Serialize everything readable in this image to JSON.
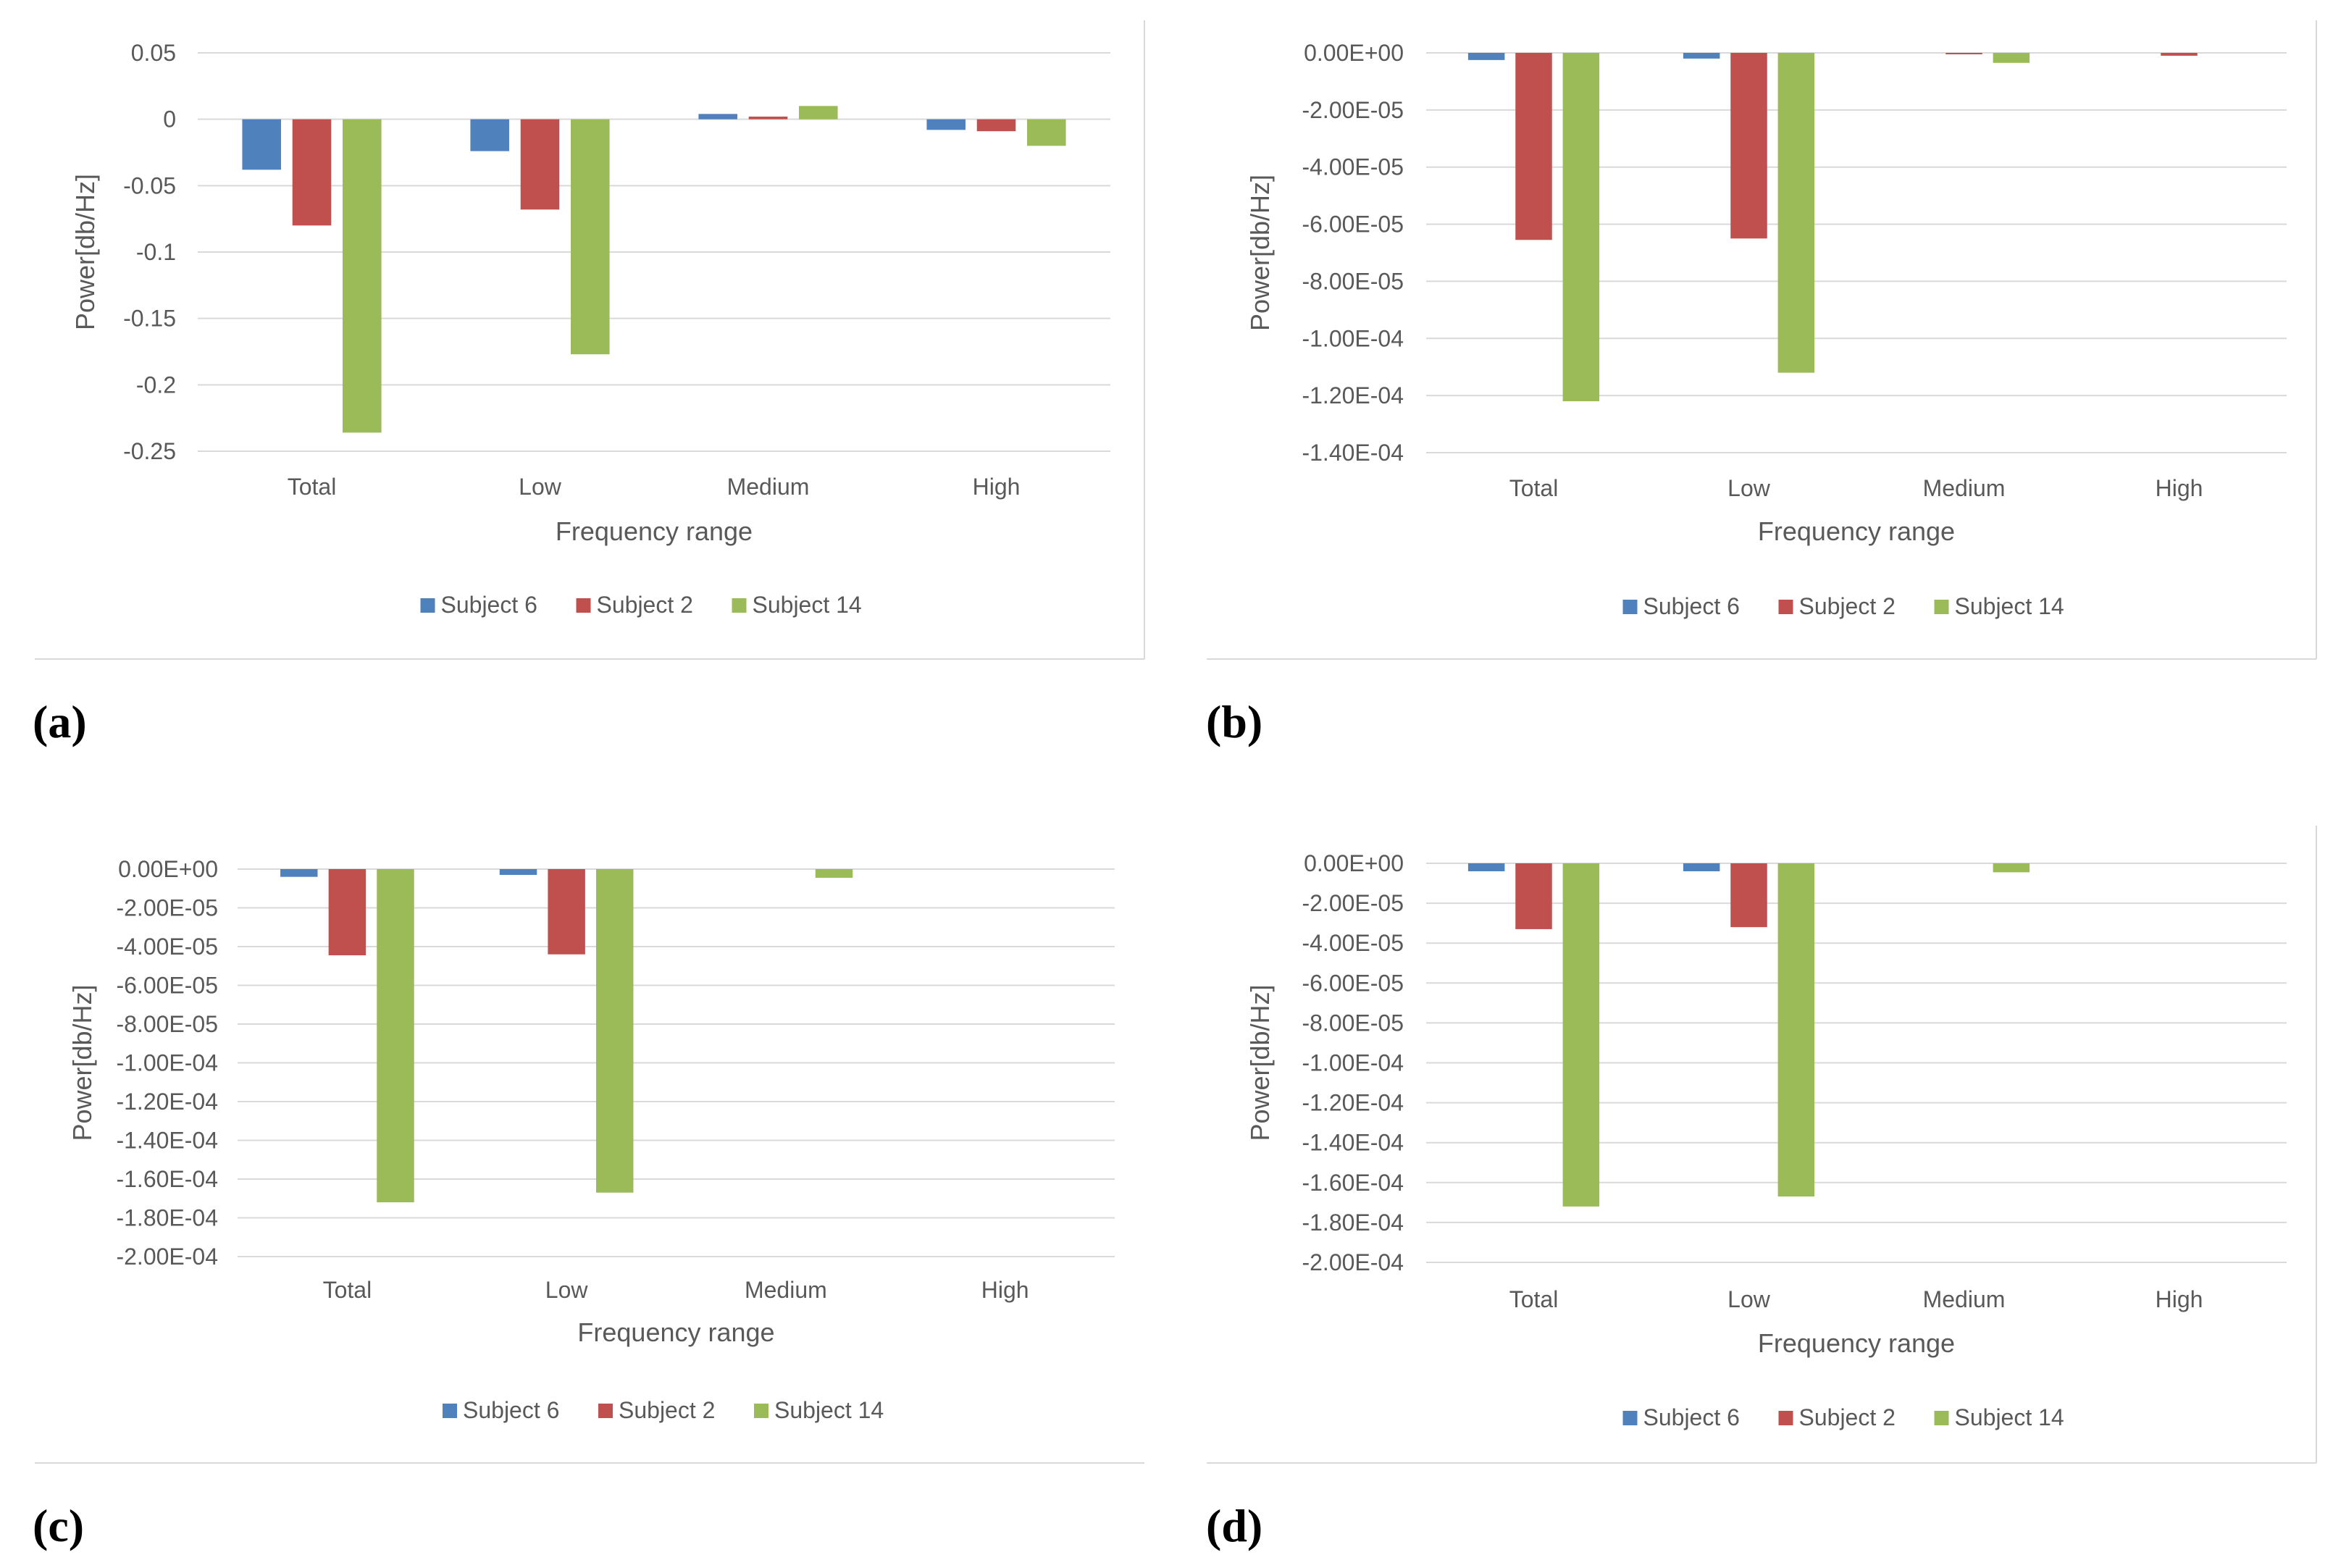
{
  "colors": {
    "series": [
      "#4f81bd",
      "#c0504d",
      "#9bbb59"
    ],
    "grid": "#d9d9d9",
    "text": "#595959",
    "border": "#d9d9d9"
  },
  "chart_data": [
    {
      "panel": "(a)",
      "type": "bar",
      "categories": [
        "Total",
        "Low",
        "Medium",
        "High"
      ],
      "series": [
        {
          "name": "Subject 6",
          "values": [
            -0.038,
            -0.024,
            0.004,
            -0.008
          ]
        },
        {
          "name": "Subject 2",
          "values": [
            -0.08,
            -0.068,
            0.002,
            -0.009
          ]
        },
        {
          "name": "Subject 14",
          "values": [
            -0.236,
            -0.177,
            0.01,
            -0.02
          ]
        }
      ],
      "xlabel": "Frequency range",
      "ylabel": "Power[db/Hz]",
      "ylim": [
        -0.25,
        0.05
      ],
      "yticks": [
        0.05,
        0,
        -0.05,
        -0.1,
        -0.15,
        -0.2,
        -0.25
      ],
      "ytick_labels": [
        "0.05",
        "0",
        "-0.05",
        "-0.1",
        "-0.15",
        "-0.2",
        "-0.25"
      ],
      "legend": "bottom"
    },
    {
      "panel": "(b)",
      "type": "bar",
      "categories": [
        "Total",
        "Low",
        "Medium",
        "High"
      ],
      "series": [
        {
          "name": "Subject 6",
          "values": [
            -2.5e-06,
            -2e-06,
            0,
            0
          ]
        },
        {
          "name": "Subject 2",
          "values": [
            -6.55e-05,
            -6.5e-05,
            -5e-07,
            -1e-06
          ]
        },
        {
          "name": "Subject 14",
          "values": [
            -0.000122,
            -0.000112,
            -3.5e-06,
            0
          ]
        }
      ],
      "xlabel": "Frequency range",
      "ylabel": "Power[db/Hz]",
      "ylim": [
        -0.00014,
        0
      ],
      "yticks": [
        0,
        -2e-05,
        -4e-05,
        -6e-05,
        -8e-05,
        -0.0001,
        -0.00012,
        -0.00014
      ],
      "ytick_labels": [
        "0.00E+00",
        "-2.00E-05",
        "-4.00E-05",
        "-6.00E-05",
        "-8.00E-05",
        "-1.00E-04",
        "-1.20E-04",
        "-1.40E-04"
      ],
      "legend": "bottom"
    },
    {
      "panel": "(c)",
      "type": "bar",
      "categories": [
        "Total",
        "Low",
        "Medium",
        "High"
      ],
      "series": [
        {
          "name": "Subject 6",
          "values": [
            -4e-06,
            -3e-06,
            0,
            0
          ]
        },
        {
          "name": "Subject 2",
          "values": [
            -4.45e-05,
            -4.4e-05,
            0,
            0
          ]
        },
        {
          "name": "Subject 14",
          "values": [
            -0.000172,
            -0.000167,
            -4.5e-06,
            0
          ]
        }
      ],
      "xlabel": "Frequency range",
      "ylabel": "Power[db/Hz]",
      "ylim": [
        -0.0002,
        0
      ],
      "yticks": [
        0,
        -2e-05,
        -4e-05,
        -6e-05,
        -8e-05,
        -0.0001,
        -0.00012,
        -0.00014,
        -0.00016,
        -0.00018,
        -0.0002
      ],
      "ytick_labels": [
        "0.00E+00",
        "-2.00E-05",
        "-4.00E-05",
        "-6.00E-05",
        "-8.00E-05",
        "-1.00E-04",
        "-1.20E-04",
        "-1.40E-04",
        "-1.60E-04",
        "-1.80E-04",
        "-2.00E-04"
      ],
      "legend": "bottom"
    },
    {
      "panel": "(d)",
      "type": "bar",
      "categories": [
        "Total",
        "Low",
        "Medium",
        "High"
      ],
      "series": [
        {
          "name": "Subject 6",
          "values": [
            -4e-06,
            -4e-06,
            0,
            0
          ]
        },
        {
          "name": "Subject 2",
          "values": [
            -3.3e-05,
            -3.2e-05,
            0,
            0
          ]
        },
        {
          "name": "Subject 14",
          "values": [
            -0.000172,
            -0.000167,
            -4.5e-06,
            0
          ]
        }
      ],
      "xlabel": "Frequency range",
      "ylabel": "Power[db/Hz]",
      "ylim": [
        -0.0002,
        0
      ],
      "yticks": [
        0,
        -2e-05,
        -4e-05,
        -6e-05,
        -8e-05,
        -0.0001,
        -0.00012,
        -0.00014,
        -0.00016,
        -0.00018,
        -0.0002
      ],
      "ytick_labels": [
        "0.00E+00",
        "-2.00E-05",
        "-4.00E-05",
        "-6.00E-05",
        "-8.00E-05",
        "-1.00E-04",
        "-1.20E-04",
        "-1.40E-04",
        "-1.60E-04",
        "-1.80E-04",
        "-2.00E-04"
      ],
      "legend": "bottom"
    }
  ]
}
